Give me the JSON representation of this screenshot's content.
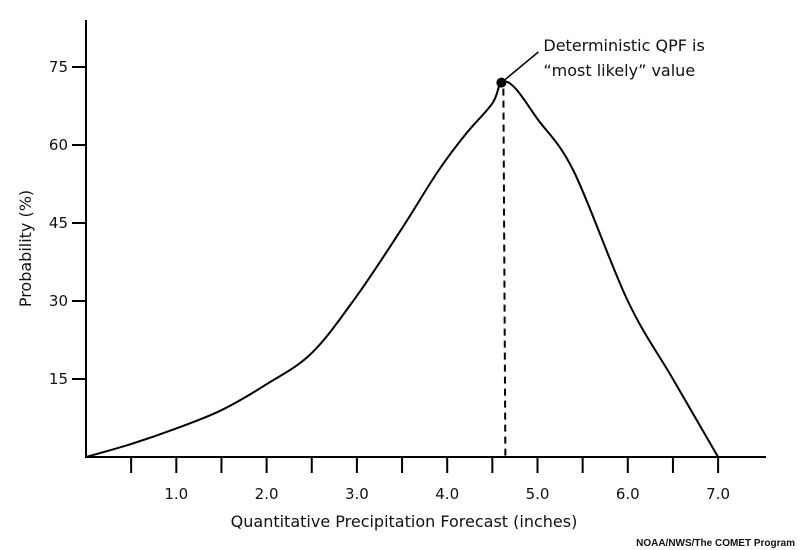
{
  "chart_data": {
    "type": "line",
    "xlabel": "Quantitative Precipitation Forecast (inches)",
    "ylabel": "Probability (%)",
    "xlim": [
      0,
      7.5
    ],
    "ylim": [
      0,
      78
    ],
    "x_ticks_major": [
      "1.0",
      "2.0",
      "3.0",
      "4.0",
      "5.0",
      "6.0",
      "7.0"
    ],
    "y_ticks": [
      "15",
      "30",
      "45",
      "60",
      "75"
    ],
    "grid": false,
    "series": [
      {
        "color": "#000000",
        "x": [
          0.0,
          0.5,
          1.0,
          1.5,
          2.0,
          2.5,
          3.0,
          3.5,
          3.9,
          4.2,
          4.5,
          4.6,
          4.75,
          5.0,
          5.4,
          6.0,
          6.5,
          7.0
        ],
        "y": [
          0,
          2.5,
          5.5,
          9,
          14,
          20,
          31,
          44,
          55,
          62,
          68,
          72,
          71,
          65,
          55,
          30,
          15,
          0
        ]
      }
    ],
    "peak": {
      "x": 4.6,
      "y": 72
    },
    "annotation": {
      "line1": "Deterministic QPF is",
      "line2": "“most likely” value"
    }
  },
  "credit": "NOAA/NWS/The COMET Program"
}
